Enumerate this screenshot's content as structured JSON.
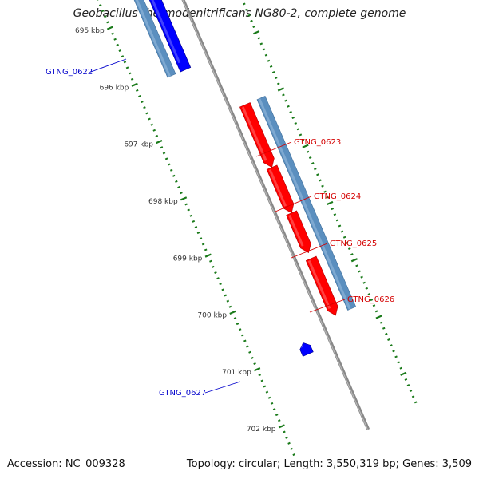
{
  "title": "Geobacillus thermodenitrificans NG80-2, complete genome",
  "footer": {
    "accession": "Accession: NC_009328",
    "topology": "Topology: circular; Length: 3,550,319 bp; Genes: 3,509"
  },
  "colors": {
    "backbone": "#888888",
    "forward_gene": "#ff0000",
    "reverse_gene": "#0000ff",
    "forward_label": "#d40000",
    "reverse_label": "#0000cc",
    "cds_track": "#5b8fbf",
    "ruler": "#1a7a1a",
    "ruler_text": "#333333"
  },
  "ruler": {
    "unit": "kbp",
    "ticks": [
      {
        "kbp": 695,
        "label": "695 kbp"
      },
      {
        "kbp": 696,
        "label": "696 kbp"
      },
      {
        "kbp": 697,
        "label": "697 kbp"
      },
      {
        "kbp": 698,
        "label": "698 kbp"
      },
      {
        "kbp": 699,
        "label": "699 kbp"
      },
      {
        "kbp": 700,
        "label": "700 kbp"
      },
      {
        "kbp": 701,
        "label": "701 kbp"
      },
      {
        "kbp": 702,
        "label": "702 kbp"
      }
    ]
  },
  "genes": [
    {
      "id": "GTNG_0622",
      "strand": "reverse",
      "start_kbp": 694.6,
      "end_kbp": 696.1
    },
    {
      "id": "GTNG_0623",
      "strand": "forward",
      "start_kbp": 697.0,
      "end_kbp": 698.1
    },
    {
      "id": "GTNG_0624",
      "strand": "forward",
      "start_kbp": 698.1,
      "end_kbp": 698.9
    },
    {
      "id": "GTNG_0625",
      "strand": "forward",
      "start_kbp": 698.9,
      "end_kbp": 699.6
    },
    {
      "id": "GTNG_0626",
      "strand": "forward",
      "start_kbp": 699.7,
      "end_kbp": 700.7
    },
    {
      "id": "GTNG_0627",
      "strand": "reverse",
      "start_kbp": 700.9,
      "end_kbp": 701.1
    }
  ],
  "cds_blocks": [
    {
      "start_kbp": 694.6,
      "end_kbp": 696.1
    },
    {
      "start_kbp": 697.0,
      "end_kbp": 700.7
    }
  ]
}
